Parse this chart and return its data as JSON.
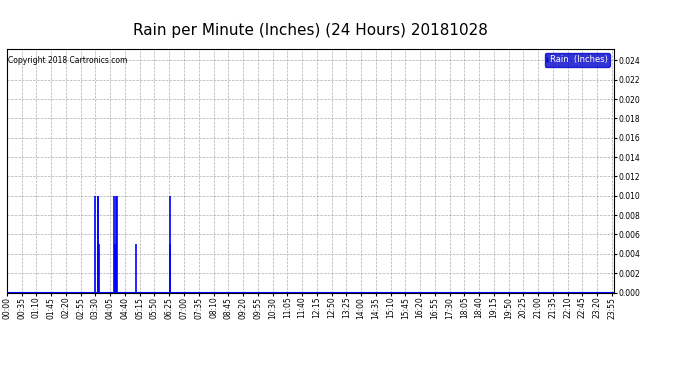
{
  "title": "Rain per Minute (Inches) (24 Hours) 20181028",
  "copyright_text": "Copyright 2018 Cartronics.com",
  "legend_label": "Rain  (Inches)",
  "legend_bg": "#0000cc",
  "legend_text_color": "#ffffff",
  "ylim": [
    0,
    0.0252
  ],
  "yticks": [
    0.0,
    0.002,
    0.004,
    0.006,
    0.008,
    0.01,
    0.012,
    0.014,
    0.016,
    0.018,
    0.02,
    0.022,
    0.024
  ],
  "background_color": "#ffffff",
  "plot_bg": "#ffffff",
  "grid_color": "#999999",
  "line_color": "#0000ff",
  "title_fontsize": 11,
  "tick_fontsize": 5.5,
  "rain_events": [
    {
      "minute": 210,
      "value": 0.01
    },
    {
      "minute": 215,
      "value": 0.005
    },
    {
      "minute": 216,
      "value": 0.01
    },
    {
      "minute": 217,
      "value": 0.01
    },
    {
      "minute": 218,
      "value": 0.005
    },
    {
      "minute": 255,
      "value": 0.01
    },
    {
      "minute": 257,
      "value": 0.005
    },
    {
      "minute": 258,
      "value": 0.01
    },
    {
      "minute": 259,
      "value": 0.005
    },
    {
      "minute": 260,
      "value": 0.01
    },
    {
      "minute": 305,
      "value": 0.005
    },
    {
      "minute": 386,
      "value": 0.01
    },
    {
      "minute": 387,
      "value": 0.005
    }
  ],
  "total_minutes": 1440,
  "x_tick_minutes": [
    0,
    35,
    70,
    105,
    140,
    175,
    210,
    245,
    280,
    315,
    350,
    385,
    420,
    455,
    490,
    525,
    560,
    595,
    630,
    665,
    700,
    735,
    770,
    805,
    840,
    875,
    910,
    945,
    980,
    1015,
    1050,
    1085,
    1120,
    1155,
    1190,
    1225,
    1260,
    1295,
    1330,
    1365,
    1400,
    1435
  ],
  "x_tick_labels": [
    "00:00",
    "00:35",
    "01:10",
    "01:45",
    "02:20",
    "02:55",
    "03:30",
    "04:05",
    "04:40",
    "05:15",
    "05:50",
    "06:25",
    "07:00",
    "07:35",
    "08:10",
    "08:45",
    "09:20",
    "09:55",
    "10:30",
    "11:05",
    "11:40",
    "12:15",
    "12:50",
    "13:25",
    "14:00",
    "14:35",
    "15:10",
    "15:45",
    "16:20",
    "16:55",
    "17:30",
    "18:05",
    "18:40",
    "19:15",
    "19:50",
    "20:25",
    "21:00",
    "21:35",
    "22:10",
    "22:45",
    "23:20",
    "23:55"
  ]
}
